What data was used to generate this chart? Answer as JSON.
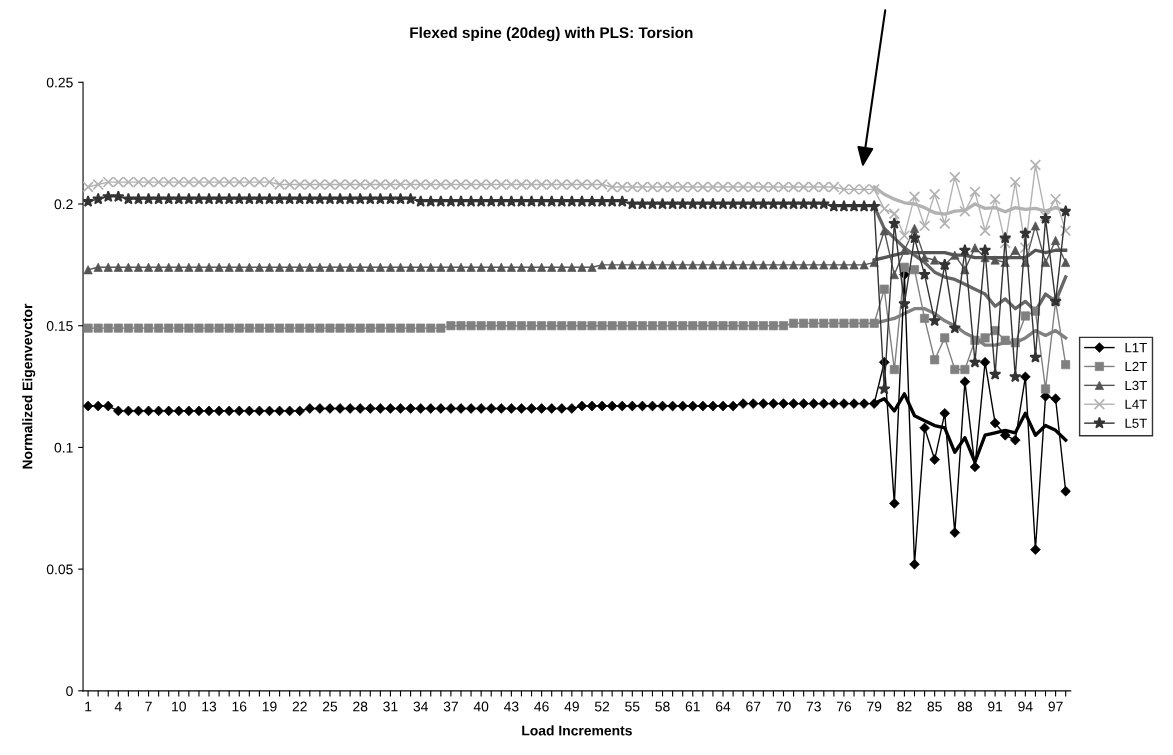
{
  "chart_data": {
    "type": "line",
    "title": "Flexed spine (20deg) with PLS: Torsion",
    "xlabel": "Load Increments",
    "ylabel": "Normalized Eigenvevctor",
    "categories": [
      "1",
      null,
      null,
      "4",
      null,
      null,
      "7",
      null,
      null,
      "10",
      null,
      null,
      "13",
      null,
      null,
      "16",
      null,
      null,
      "19",
      null,
      null,
      "22",
      null,
      null,
      "25",
      null,
      null,
      "28",
      null,
      null,
      "31",
      null,
      null,
      "34",
      null,
      null,
      "37",
      null,
      null,
      "40",
      null,
      null,
      "43",
      null,
      null,
      "46",
      null,
      null,
      "49",
      null,
      null,
      "52",
      null,
      null,
      "55",
      null,
      null,
      "58",
      null,
      null,
      "61",
      null,
      null,
      "64",
      null,
      null,
      "67",
      null,
      null,
      "70",
      null,
      null,
      "73",
      null,
      null,
      "76",
      null,
      null,
      "79",
      null,
      null,
      "82",
      null,
      null,
      "85",
      null,
      null,
      "88",
      null,
      null,
      "91",
      null,
      null,
      "94",
      null,
      null,
      "97",
      null
    ],
    "ylim": [
      0,
      0.25
    ],
    "yticks": [
      0,
      0.05,
      0.1,
      0.15,
      0.2,
      0.25
    ],
    "legend": "right",
    "grid": false,
    "series": [
      {
        "name": "L1T",
        "color": "#000000",
        "marker": "diamond",
        "values": [
          0.117,
          0.117,
          0.117,
          0.115,
          0.115,
          0.115,
          0.115,
          0.115,
          0.115,
          0.115,
          0.115,
          0.115,
          0.115,
          0.115,
          0.115,
          0.115,
          0.115,
          0.115,
          0.115,
          0.115,
          0.115,
          0.115,
          0.116,
          0.116,
          0.116,
          0.116,
          0.116,
          0.116,
          0.116,
          0.116,
          0.116,
          0.116,
          0.116,
          0.116,
          0.116,
          0.116,
          0.116,
          0.116,
          0.116,
          0.116,
          0.116,
          0.116,
          0.116,
          0.116,
          0.116,
          0.116,
          0.116,
          0.116,
          0.116,
          0.117,
          0.117,
          0.117,
          0.117,
          0.117,
          0.117,
          0.117,
          0.117,
          0.117,
          0.117,
          0.117,
          0.117,
          0.117,
          0.117,
          0.117,
          0.117,
          0.118,
          0.118,
          0.118,
          0.118,
          0.118,
          0.118,
          0.118,
          0.118,
          0.118,
          0.118,
          0.118,
          0.118,
          0.118,
          0.118,
          0.135,
          0.077,
          0.171,
          0.052,
          0.108,
          0.095,
          0.114,
          0.065,
          0.127,
          0.092,
          0.135,
          0.11,
          0.105,
          0.103,
          0.129,
          0.058,
          0.121,
          0.12,
          0.082
        ]
      },
      {
        "name": "L2T",
        "color": "#808080",
        "marker": "square",
        "values": [
          0.149,
          0.149,
          0.149,
          0.149,
          0.149,
          0.149,
          0.149,
          0.149,
          0.149,
          0.149,
          0.149,
          0.149,
          0.149,
          0.149,
          0.149,
          0.149,
          0.149,
          0.149,
          0.149,
          0.149,
          0.149,
          0.149,
          0.149,
          0.149,
          0.149,
          0.149,
          0.149,
          0.149,
          0.149,
          0.149,
          0.149,
          0.149,
          0.149,
          0.149,
          0.149,
          0.149,
          0.15,
          0.15,
          0.15,
          0.15,
          0.15,
          0.15,
          0.15,
          0.15,
          0.15,
          0.15,
          0.15,
          0.15,
          0.15,
          0.15,
          0.15,
          0.15,
          0.15,
          0.15,
          0.15,
          0.15,
          0.15,
          0.15,
          0.15,
          0.15,
          0.15,
          0.15,
          0.15,
          0.15,
          0.15,
          0.15,
          0.15,
          0.15,
          0.15,
          0.15,
          0.151,
          0.151,
          0.151,
          0.151,
          0.151,
          0.151,
          0.151,
          0.151,
          0.151,
          0.165,
          0.132,
          0.174,
          0.173,
          0.153,
          0.136,
          0.145,
          0.132,
          0.132,
          0.144,
          0.145,
          0.148,
          0.144,
          0.143,
          0.154,
          0.156,
          0.124,
          0.16,
          0.134
        ]
      },
      {
        "name": "L3T",
        "color": "#555555",
        "marker": "triangle",
        "values": [
          0.173,
          0.174,
          0.174,
          0.174,
          0.174,
          0.174,
          0.174,
          0.174,
          0.174,
          0.174,
          0.174,
          0.174,
          0.174,
          0.174,
          0.174,
          0.174,
          0.174,
          0.174,
          0.174,
          0.174,
          0.174,
          0.174,
          0.174,
          0.174,
          0.174,
          0.174,
          0.174,
          0.174,
          0.174,
          0.174,
          0.174,
          0.174,
          0.174,
          0.174,
          0.174,
          0.174,
          0.174,
          0.174,
          0.174,
          0.174,
          0.174,
          0.174,
          0.174,
          0.174,
          0.174,
          0.174,
          0.174,
          0.174,
          0.174,
          0.174,
          0.174,
          0.175,
          0.175,
          0.175,
          0.175,
          0.175,
          0.175,
          0.175,
          0.175,
          0.175,
          0.175,
          0.175,
          0.175,
          0.175,
          0.175,
          0.175,
          0.175,
          0.175,
          0.175,
          0.175,
          0.175,
          0.175,
          0.175,
          0.175,
          0.175,
          0.175,
          0.175,
          0.175,
          0.176,
          0.189,
          0.171,
          0.181,
          0.19,
          0.178,
          0.177,
          0.175,
          0.179,
          0.173,
          0.182,
          0.178,
          0.177,
          0.176,
          0.181,
          0.176,
          0.191,
          0.176,
          0.185,
          0.176
        ]
      },
      {
        "name": "L4T",
        "color": "#b2b2b2",
        "marker": "cross",
        "values": [
          0.207,
          0.208,
          0.209,
          0.209,
          0.209,
          0.209,
          0.209,
          0.209,
          0.209,
          0.209,
          0.209,
          0.209,
          0.209,
          0.209,
          0.209,
          0.209,
          0.209,
          0.209,
          0.209,
          0.208,
          0.208,
          0.208,
          0.208,
          0.208,
          0.208,
          0.208,
          0.208,
          0.208,
          0.208,
          0.208,
          0.208,
          0.208,
          0.208,
          0.208,
          0.208,
          0.208,
          0.208,
          0.208,
          0.208,
          0.208,
          0.208,
          0.208,
          0.208,
          0.208,
          0.208,
          0.208,
          0.208,
          0.208,
          0.208,
          0.208,
          0.208,
          0.208,
          0.207,
          0.207,
          0.207,
          0.207,
          0.207,
          0.207,
          0.207,
          0.207,
          0.207,
          0.207,
          0.207,
          0.207,
          0.207,
          0.207,
          0.207,
          0.207,
          0.207,
          0.207,
          0.207,
          0.207,
          0.207,
          0.207,
          0.207,
          0.206,
          0.206,
          0.206,
          0.206,
          0.198,
          0.196,
          0.187,
          0.203,
          0.191,
          0.204,
          0.192,
          0.211,
          0.197,
          0.205,
          0.189,
          0.202,
          0.184,
          0.209,
          0.182,
          0.216,
          0.195,
          0.202,
          0.189
        ]
      },
      {
        "name": "L5T",
        "color": "#333333",
        "marker": "star",
        "values": [
          0.201,
          0.202,
          0.203,
          0.203,
          0.202,
          0.202,
          0.202,
          0.202,
          0.202,
          0.202,
          0.202,
          0.202,
          0.202,
          0.202,
          0.202,
          0.202,
          0.202,
          0.202,
          0.202,
          0.202,
          0.202,
          0.202,
          0.202,
          0.202,
          0.202,
          0.202,
          0.202,
          0.202,
          0.202,
          0.202,
          0.202,
          0.202,
          0.202,
          0.201,
          0.201,
          0.201,
          0.201,
          0.201,
          0.201,
          0.201,
          0.201,
          0.201,
          0.201,
          0.201,
          0.201,
          0.201,
          0.201,
          0.201,
          0.201,
          0.201,
          0.201,
          0.201,
          0.201,
          0.201,
          0.2,
          0.2,
          0.2,
          0.2,
          0.2,
          0.2,
          0.2,
          0.2,
          0.2,
          0.2,
          0.2,
          0.2,
          0.2,
          0.2,
          0.2,
          0.2,
          0.2,
          0.2,
          0.2,
          0.2,
          0.199,
          0.199,
          0.199,
          0.199,
          0.199,
          0.124,
          0.192,
          0.159,
          0.186,
          0.171,
          0.152,
          0.175,
          0.149,
          0.181,
          0.135,
          0.181,
          0.13,
          0.186,
          0.129,
          0.188,
          0.137,
          0.194,
          0.16,
          0.197
        ]
      },
      {
        "color": "#000000",
        "marker": "none",
        "values": [
          null,
          null,
          null,
          null,
          null,
          null,
          null,
          null,
          null,
          null,
          null,
          null,
          null,
          null,
          null,
          null,
          null,
          null,
          null,
          null,
          null,
          null,
          null,
          null,
          null,
          null,
          null,
          null,
          null,
          null,
          null,
          null,
          null,
          null,
          null,
          null,
          null,
          null,
          null,
          null,
          null,
          null,
          null,
          null,
          null,
          null,
          null,
          null,
          null,
          null,
          null,
          null,
          null,
          null,
          null,
          null,
          null,
          null,
          null,
          null,
          null,
          null,
          null,
          null,
          null,
          null,
          null,
          null,
          null,
          null,
          null,
          null,
          null,
          null,
          null,
          null,
          null,
          null,
          0.118,
          0.12,
          0.115,
          0.122,
          0.113,
          0.111,
          0.109,
          0.108,
          0.098,
          0.104,
          0.094,
          0.105,
          0.106,
          0.107,
          0.106,
          0.114,
          0.105,
          0.109,
          0.107,
          0.103
        ]
      },
      {
        "color": "#808080",
        "marker": "none",
        "values": [
          null,
          null,
          null,
          null,
          null,
          null,
          null,
          null,
          null,
          null,
          null,
          null,
          null,
          null,
          null,
          null,
          null,
          null,
          null,
          null,
          null,
          null,
          null,
          null,
          null,
          null,
          null,
          null,
          null,
          null,
          null,
          null,
          null,
          null,
          null,
          null,
          null,
          null,
          null,
          null,
          null,
          null,
          null,
          null,
          null,
          null,
          null,
          null,
          null,
          null,
          null,
          null,
          null,
          null,
          null,
          null,
          null,
          null,
          null,
          null,
          null,
          null,
          null,
          null,
          null,
          null,
          null,
          null,
          null,
          null,
          null,
          null,
          null,
          null,
          null,
          null,
          null,
          null,
          0.151,
          0.152,
          0.153,
          0.155,
          0.157,
          0.157,
          0.155,
          0.152,
          0.15,
          0.147,
          0.145,
          0.142,
          0.142,
          0.143,
          0.143,
          0.145,
          0.148,
          0.146,
          0.148,
          0.145
        ]
      },
      {
        "color": "#555555",
        "marker": "none",
        "values": [
          null,
          null,
          null,
          null,
          null,
          null,
          null,
          null,
          null,
          null,
          null,
          null,
          null,
          null,
          null,
          null,
          null,
          null,
          null,
          null,
          null,
          null,
          null,
          null,
          null,
          null,
          null,
          null,
          null,
          null,
          null,
          null,
          null,
          null,
          null,
          null,
          null,
          null,
          null,
          null,
          null,
          null,
          null,
          null,
          null,
          null,
          null,
          null,
          null,
          null,
          null,
          null,
          null,
          null,
          null,
          null,
          null,
          null,
          null,
          null,
          null,
          null,
          null,
          null,
          null,
          null,
          null,
          null,
          null,
          null,
          null,
          null,
          null,
          null,
          null,
          null,
          null,
          null,
          0.177,
          0.178,
          0.179,
          0.18,
          0.18,
          0.18,
          0.18,
          0.18,
          0.179,
          0.179,
          0.178,
          0.178,
          0.178,
          0.178,
          0.178,
          0.178,
          0.181,
          0.18,
          0.181,
          0.181
        ]
      },
      {
        "color": "#b2b2b2",
        "marker": "none",
        "values": [
          null,
          null,
          null,
          null,
          null,
          null,
          null,
          null,
          null,
          null,
          null,
          null,
          null,
          null,
          null,
          null,
          null,
          null,
          null,
          null,
          null,
          null,
          null,
          null,
          null,
          null,
          null,
          null,
          null,
          null,
          null,
          null,
          null,
          null,
          null,
          null,
          null,
          null,
          null,
          null,
          null,
          null,
          null,
          null,
          null,
          null,
          null,
          null,
          null,
          null,
          null,
          null,
          null,
          null,
          null,
          null,
          null,
          null,
          null,
          null,
          null,
          null,
          null,
          null,
          null,
          null,
          null,
          null,
          null,
          null,
          null,
          null,
          null,
          null,
          null,
          null,
          null,
          null,
          0.207,
          0.204,
          0.202,
          0.2005,
          0.2,
          0.1985,
          0.1964,
          0.1958,
          0.1971,
          0.1974,
          0.2,
          0.1982,
          0.1985,
          0.1968,
          0.1985,
          0.1978,
          0.1982,
          0.1971,
          0.1985,
          0.1971
        ]
      },
      {
        "color": "#666666",
        "marker": "none",
        "values": [
          null,
          null,
          null,
          null,
          null,
          null,
          null,
          null,
          null,
          null,
          null,
          null,
          null,
          null,
          null,
          null,
          null,
          null,
          null,
          null,
          null,
          null,
          null,
          null,
          null,
          null,
          null,
          null,
          null,
          null,
          null,
          null,
          null,
          null,
          null,
          null,
          null,
          null,
          null,
          null,
          null,
          null,
          null,
          null,
          null,
          null,
          null,
          null,
          null,
          null,
          null,
          null,
          null,
          null,
          null,
          null,
          null,
          null,
          null,
          null,
          null,
          null,
          null,
          null,
          null,
          null,
          null,
          null,
          null,
          null,
          null,
          null,
          null,
          null,
          null,
          null,
          null,
          null,
          0.199,
          0.19,
          0.186,
          0.182,
          0.179,
          0.176,
          0.172,
          0.17,
          0.169,
          0.167,
          0.165,
          0.163,
          0.158,
          0.161,
          0.157,
          0.16,
          0.156,
          0.163,
          0.16,
          0.17
        ]
      }
    ]
  }
}
